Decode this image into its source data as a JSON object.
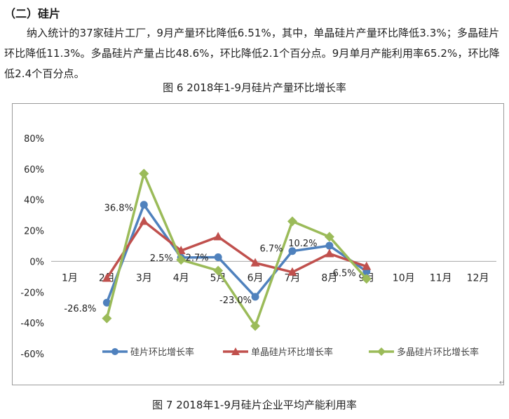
{
  "section": {
    "heading": "（二）硅片"
  },
  "paragraph": "纳入统计的37家硅片工厂，9月产量环比降低6.51%，其中，单晶硅片产量环比降低3.3%；多晶硅片环比降低11.3%。多晶硅片产量占比48.6%，环比降低2.1个百分点。9月单月产能利用率65.2%，环比降低2.4个百分点。",
  "figure6_caption": "图 6 2018年1-9月硅片产量环比增长率",
  "figure7_caption": "图 7 2018年1-9月硅片企业平均产能利用率",
  "return_mark": "↵",
  "colors": {
    "wafer": "#4f81bd",
    "mono": "#c0504d",
    "poly": "#9bbb59"
  },
  "chart_data": {
    "type": "line",
    "title": "",
    "xlabel": "",
    "ylabel": "",
    "categories": [
      "1月",
      "2月",
      "3月",
      "4月",
      "5月",
      "6月",
      "7月",
      "8月",
      "9月",
      "10月",
      "11月",
      "12月"
    ],
    "ylim": [
      -60,
      80
    ],
    "yticks": [
      80,
      60,
      40,
      20,
      0,
      -20,
      -40,
      -60
    ],
    "ytick_labels": [
      "80%",
      "60%",
      "40%",
      "20%",
      "0%",
      "-20%",
      "-40%",
      "-60%"
    ],
    "grid": false,
    "legend_position": "bottom",
    "series": [
      {
        "name": "硅片环比增长率",
        "color_key": "wafer",
        "marker": "circle",
        "values": [
          null,
          -26.8,
          36.8,
          2.5,
          2.7,
          -23.0,
          6.7,
          10.2,
          -6.5,
          null,
          null,
          null
        ]
      },
      {
        "name": "单晶硅片环比增长率",
        "color_key": "mono",
        "marker": "triangle",
        "values": [
          null,
          -11,
          26,
          7,
          16,
          -1,
          -7,
          5,
          -3.3,
          null,
          null,
          null
        ]
      },
      {
        "name": "多晶硅片环比增长率",
        "color_key": "poly",
        "marker": "diamond",
        "values": [
          null,
          -37,
          57,
          1,
          -6,
          -42,
          26,
          16,
          -11.3,
          null,
          null,
          null
        ]
      }
    ],
    "data_labels": [
      {
        "category": "2月",
        "text": "-26.8%"
      },
      {
        "category": "3月",
        "text": "36.8%"
      },
      {
        "category": "4月",
        "text": "2.5%"
      },
      {
        "category": "5月",
        "text": "2.7%"
      },
      {
        "category": "6月",
        "text": "-23.0%"
      },
      {
        "category": "7月",
        "text": "6.7%"
      },
      {
        "category": "8月",
        "text": "10.2%"
      },
      {
        "category": "9月",
        "text": "-6.5%"
      }
    ]
  }
}
